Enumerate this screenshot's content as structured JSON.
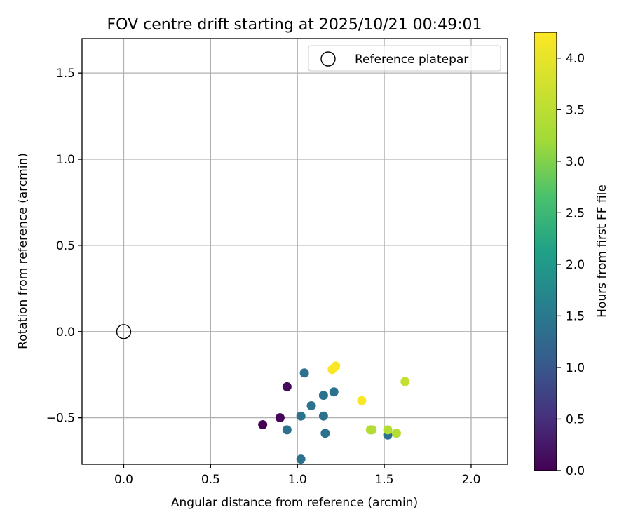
{
  "chart_data": {
    "type": "scatter",
    "title": "FOV centre drift starting at 2025/10/21 00:49:01",
    "xlabel": "Angular distance from reference (arcmin)",
    "ylabel": "Rotation from reference (arcmin)",
    "xlim": [
      -0.24,
      2.21
    ],
    "ylim": [
      -0.77,
      1.7
    ],
    "xticks": [
      0.0,
      0.5,
      1.0,
      1.5,
      2.0
    ],
    "xtick_labels": [
      "0.0",
      "0.5",
      "1.0",
      "1.5",
      "2.0"
    ],
    "yticks": [
      -0.5,
      0.0,
      0.5,
      1.0,
      1.5
    ],
    "ytick_labels": [
      "−0.5",
      "0.0",
      "0.5",
      "1.0",
      "1.5"
    ],
    "grid": true,
    "legend": {
      "position": "top-right",
      "label": "Reference platepar"
    },
    "reference_point": {
      "x": 0.0,
      "y": 0.0
    },
    "colorbar": {
      "label": "Hours from first FF file",
      "range": [
        0.0,
        4.25
      ],
      "ticks": [
        0.0,
        0.5,
        1.0,
        1.5,
        2.0,
        2.5,
        3.0,
        3.5,
        4.0
      ],
      "tick_labels": [
        "0.0",
        "0.5",
        "1.0",
        "1.5",
        "2.0",
        "2.5",
        "3.0",
        "3.5",
        "4.0"
      ],
      "colormap": "viridis"
    },
    "points": [
      {
        "x": 0.8,
        "y": -0.54,
        "c": 0.0
      },
      {
        "x": 0.9,
        "y": -0.5,
        "c": 0.05
      },
      {
        "x": 0.94,
        "y": -0.32,
        "c": 0.1
      },
      {
        "x": 0.94,
        "y": -0.57,
        "c": 1.4
      },
      {
        "x": 1.02,
        "y": -0.49,
        "c": 1.4
      },
      {
        "x": 1.02,
        "y": -0.74,
        "c": 1.4
      },
      {
        "x": 1.04,
        "y": -0.24,
        "c": 1.4
      },
      {
        "x": 1.08,
        "y": -0.43,
        "c": 1.4
      },
      {
        "x": 1.15,
        "y": -0.37,
        "c": 1.4
      },
      {
        "x": 1.15,
        "y": -0.49,
        "c": 1.4
      },
      {
        "x": 1.16,
        "y": -0.59,
        "c": 1.4
      },
      {
        "x": 1.21,
        "y": -0.35,
        "c": 1.4
      },
      {
        "x": 1.52,
        "y": -0.6,
        "c": 1.4
      },
      {
        "x": 1.2,
        "y": -0.22,
        "c": 4.2
      },
      {
        "x": 1.22,
        "y": -0.2,
        "c": 4.2
      },
      {
        "x": 1.37,
        "y": -0.4,
        "c": 4.2
      },
      {
        "x": 1.42,
        "y": -0.57,
        "c": 3.4
      },
      {
        "x": 1.43,
        "y": -0.57,
        "c": 3.4
      },
      {
        "x": 1.52,
        "y": -0.57,
        "c": 3.4
      },
      {
        "x": 1.57,
        "y": -0.59,
        "c": 3.4
      },
      {
        "x": 1.62,
        "y": -0.29,
        "c": 3.6
      }
    ]
  }
}
